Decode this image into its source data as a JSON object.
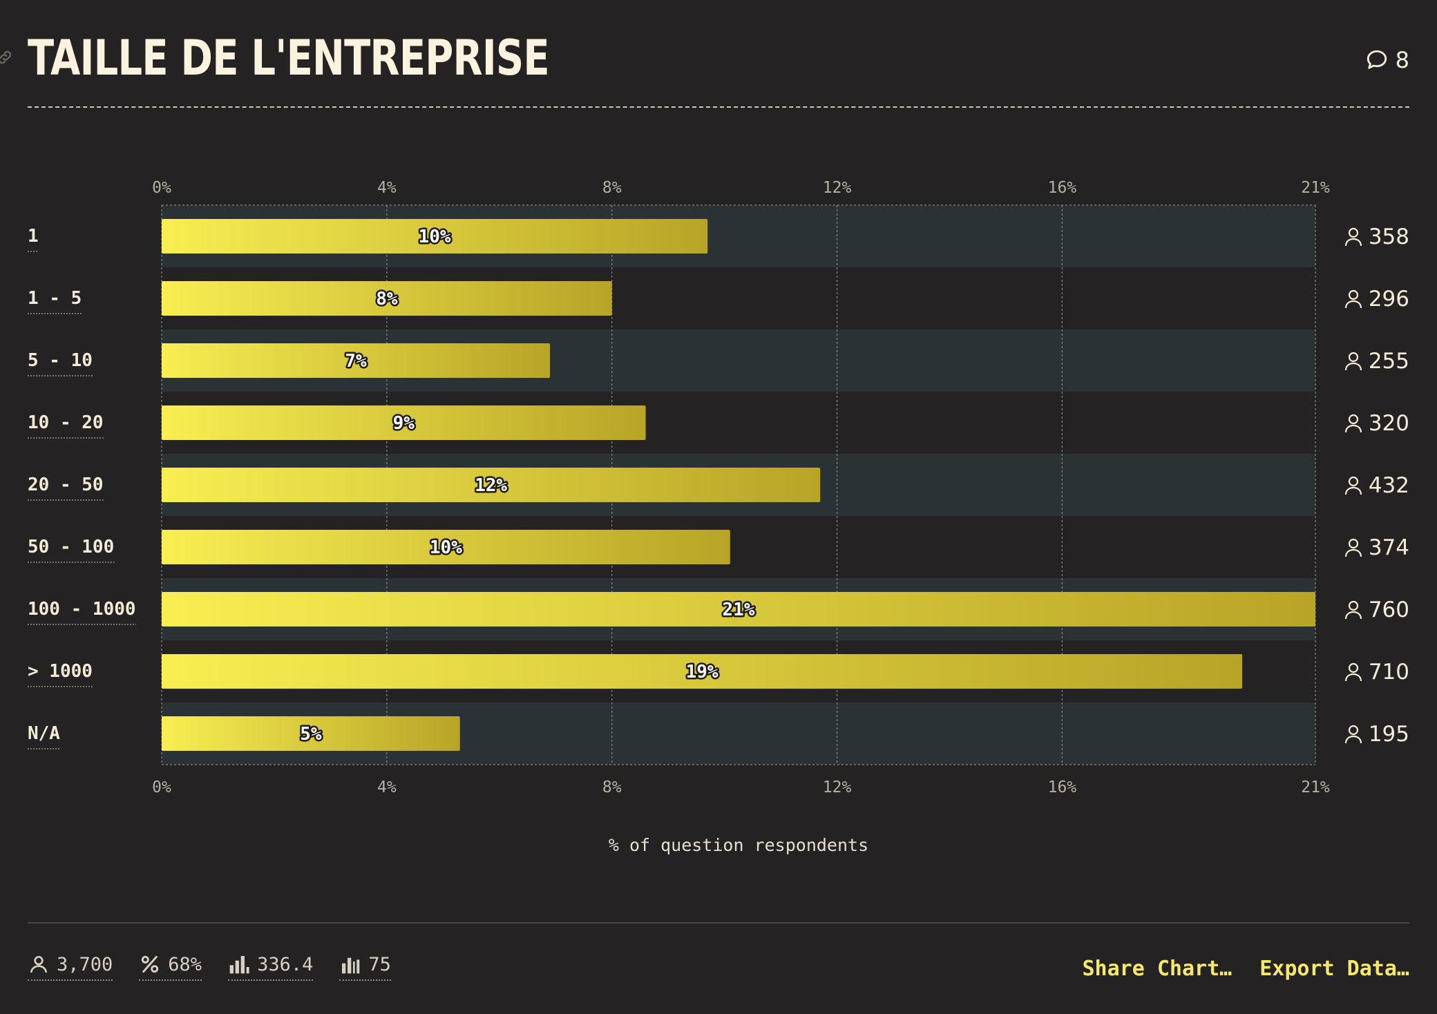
{
  "header": {
    "title": "TAILLE DE L'ENTREPRISE",
    "comment_count": "8"
  },
  "chart_data": {
    "type": "bar",
    "orientation": "horizontal",
    "categories": [
      "1",
      "1 - 5",
      "5 - 10",
      "10 - 20",
      "20 - 50",
      "50 - 100",
      "100 - 1000",
      "> 1000",
      "N/A"
    ],
    "values": [
      9.7,
      8.0,
      6.9,
      8.6,
      11.7,
      10.1,
      20.5,
      19.2,
      5.3
    ],
    "value_labels": [
      "10%",
      "8%",
      "7%",
      "9%",
      "12%",
      "10%",
      "21%",
      "19%",
      "5%"
    ],
    "respondents": [
      "358",
      "296",
      "255",
      "320",
      "432",
      "374",
      "760",
      "710",
      "195"
    ],
    "x_ticks": [
      0,
      4,
      8,
      12,
      16,
      20.5
    ],
    "x_tick_labels": [
      "0%",
      "4%",
      "8%",
      "12%",
      "16%",
      "21%"
    ],
    "xlim": [
      0,
      20.5
    ],
    "xlabel": "% of question respondents",
    "grid": true,
    "colors": {
      "bar_start": "#f8ee52",
      "bar_end": "#b8a426",
      "band": "#2b3235"
    }
  },
  "footer": {
    "stats": [
      {
        "icon": "person-icon",
        "value": "3,700"
      },
      {
        "icon": "percent-icon",
        "value": "68%"
      },
      {
        "icon": "bar-chart-icon",
        "value": "336.4"
      },
      {
        "icon": "column-chart-icon",
        "value": "75"
      }
    ],
    "share_label": "Share Chart…",
    "export_label": "Export Data…"
  }
}
